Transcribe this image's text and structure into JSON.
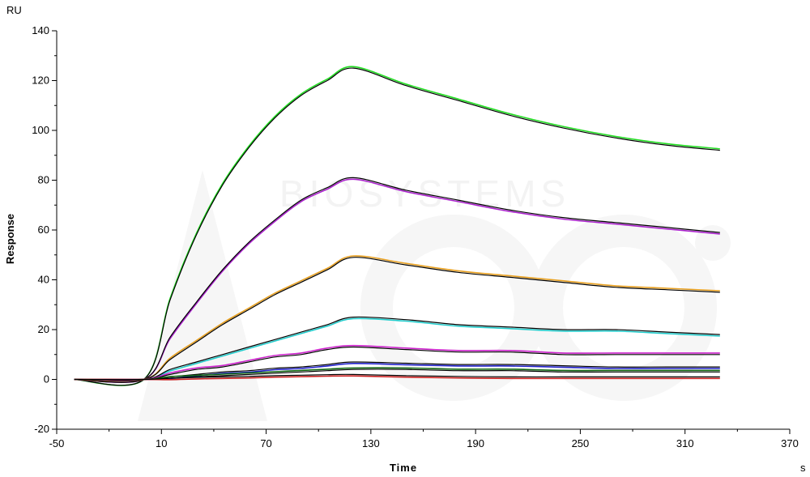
{
  "chart_data": {
    "type": "line",
    "title": "",
    "xlabel": "Time",
    "ylabel": "Response",
    "x_unit": "s",
    "y_unit": "RU",
    "xlim": [
      -50,
      370
    ],
    "ylim": [
      -20,
      140
    ],
    "x_ticks": [
      -50,
      10,
      70,
      130,
      190,
      250,
      310,
      370
    ],
    "y_ticks": [
      -20,
      0,
      20,
      40,
      60,
      80,
      100,
      120,
      140
    ],
    "grid": false,
    "legend": "none",
    "series": [
      {
        "color": "#22dd22",
        "fit_color": "#000000",
        "x": [
          -40,
          0,
          15,
          30,
          45,
          60,
          75,
          90,
          105,
          120,
          150,
          180,
          210,
          240,
          270,
          300,
          330
        ],
        "y": [
          0,
          0,
          32,
          58,
          78,
          93,
          105,
          114,
          120,
          125,
          118,
          112,
          106,
          101,
          97,
          94,
          92
        ]
      },
      {
        "color": "#aa22cc",
        "fit_color": "#000000",
        "x": [
          -40,
          0,
          15,
          30,
          45,
          60,
          75,
          90,
          105,
          120,
          150,
          180,
          210,
          240,
          270,
          300,
          330
        ],
        "y": [
          0,
          0,
          17,
          31,
          44,
          55,
          64,
          72,
          77,
          81,
          76,
          72,
          68,
          65,
          63,
          61,
          59
        ]
      },
      {
        "color": "#e8a020",
        "fit_color": "#000000",
        "x": [
          -40,
          0,
          15,
          30,
          45,
          60,
          75,
          90,
          105,
          120,
          150,
          180,
          210,
          240,
          270,
          300,
          330
        ],
        "y": [
          0,
          0,
          8,
          15,
          22,
          28,
          34,
          39,
          44,
          49,
          46,
          43,
          41,
          39,
          37,
          36,
          35
        ]
      },
      {
        "color": "#22cccc",
        "fit_color": "#000000",
        "x": [
          -40,
          0,
          15,
          30,
          45,
          60,
          75,
          90,
          105,
          120,
          150,
          180,
          210,
          240,
          270,
          300,
          330
        ],
        "y": [
          0,
          0,
          4,
          7,
          10,
          13,
          16,
          19,
          22,
          25,
          24,
          22,
          21,
          20,
          20,
          19,
          18
        ]
      },
      {
        "color": "#cc22cc",
        "fit_color": "#000000",
        "x": [
          -40,
          0,
          15,
          30,
          45,
          60,
          75,
          90,
          105,
          120,
          150,
          180,
          210,
          240,
          270,
          300,
          330
        ],
        "y": [
          0,
          0,
          2,
          4,
          5,
          7,
          9,
          10,
          12,
          13,
          12,
          11,
          11,
          10,
          10,
          10,
          10
        ]
      },
      {
        "color": "#2222cc",
        "fit_color": "#000000",
        "x": [
          -40,
          0,
          15,
          30,
          45,
          60,
          75,
          90,
          105,
          120,
          150,
          180,
          210,
          240,
          270,
          300,
          330
        ],
        "y": [
          0,
          0,
          1,
          2,
          3,
          3.5,
          4.5,
          5,
          6,
          7,
          6.5,
          6,
          6,
          5.5,
          5,
          5,
          5
        ]
      },
      {
        "color": "#116611",
        "fit_color": "#000000",
        "x": [
          -40,
          0,
          15,
          30,
          45,
          60,
          75,
          90,
          105,
          120,
          150,
          180,
          210,
          240,
          270,
          300,
          330
        ],
        "y": [
          0,
          0,
          0.5,
          1,
          1.5,
          2,
          2.5,
          3,
          3.5,
          4,
          4,
          3.5,
          3.5,
          3,
          3,
          3,
          3
        ]
      },
      {
        "color": "#cc2222",
        "fit_color": "#000000",
        "x": [
          -40,
          0,
          15,
          30,
          45,
          60,
          75,
          90,
          105,
          120,
          150,
          180,
          210,
          240,
          270,
          300,
          330
        ],
        "y": [
          0,
          0,
          0.5,
          0.8,
          1,
          1.2,
          1.5,
          1.7,
          1.9,
          2,
          1.5,
          1.2,
          1,
          1,
          1,
          1,
          1
        ]
      }
    ]
  }
}
